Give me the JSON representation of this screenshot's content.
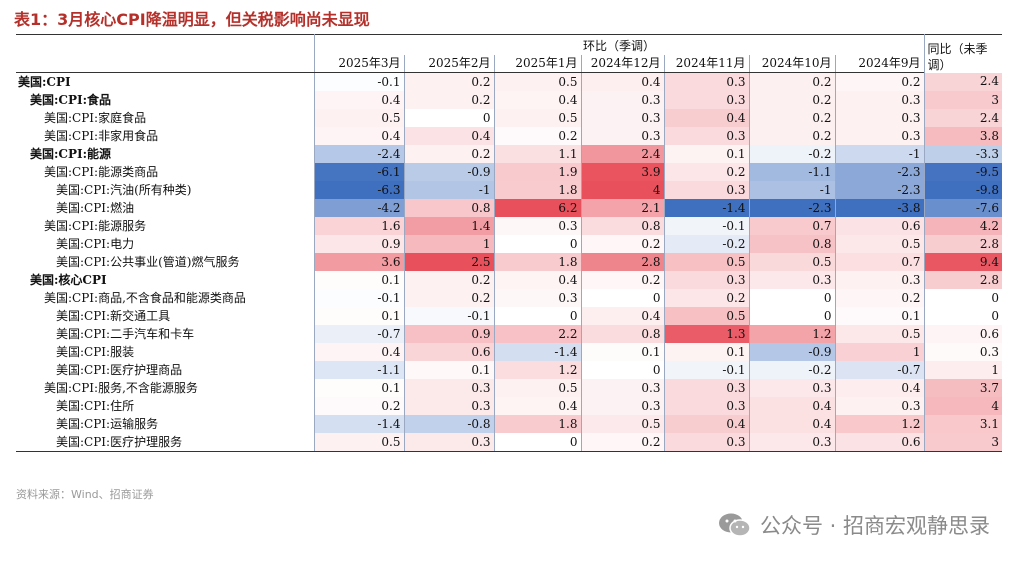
{
  "title": "表1：3月核心CPI降温明显，但关税影响尚未显现",
  "header": {
    "group_mom": "环比（季调）",
    "group_yoy": "同比（未季调）",
    "months": [
      "2025年3月",
      "2025年2月",
      "2025年1月",
      "2024年12月",
      "2024年11月",
      "2024年10月",
      "2024年9月"
    ]
  },
  "chart_data": {
    "type": "table",
    "columns": [
      "2025年3月",
      "2025年2月",
      "2025年1月",
      "2024年12月",
      "2024年11月",
      "2024年10月",
      "2024年9月",
      "同比（未季调）"
    ],
    "rows": [
      {
        "label": "美国:CPI",
        "indent": 0,
        "bold": true,
        "values": [
          -0.1,
          0.2,
          0.5,
          0.4,
          0.3,
          0.2,
          0.2,
          2.4
        ]
      },
      {
        "label": "美国:CPI:食品",
        "indent": 1,
        "bold": true,
        "values": [
          0.4,
          0.2,
          0.4,
          0.3,
          0.3,
          0.2,
          0.3,
          3
        ]
      },
      {
        "label": "美国:CPI:家庭食品",
        "indent": 2,
        "bold": false,
        "values": [
          0.5,
          0,
          0.5,
          0.3,
          0.4,
          0.2,
          0.3,
          2.4
        ]
      },
      {
        "label": "美国:CPI:非家用食品",
        "indent": 2,
        "bold": false,
        "values": [
          0.4,
          0.4,
          0.2,
          0.3,
          0.3,
          0.2,
          0.3,
          3.8
        ]
      },
      {
        "label": "美国:CPI:能源",
        "indent": 1,
        "bold": true,
        "values": [
          -2.4,
          0.2,
          1.1,
          2.4,
          0.1,
          -0.2,
          -1,
          -3.3
        ]
      },
      {
        "label": "美国:CPI:能源类商品",
        "indent": 2,
        "bold": false,
        "values": [
          -6.1,
          -0.9,
          1.9,
          3.9,
          0.2,
          -1.1,
          -2.3,
          -9.5
        ]
      },
      {
        "label": "美国:CPI:汽油(所有种类)",
        "indent": 3,
        "bold": false,
        "values": [
          -6.3,
          -1,
          1.8,
          4,
          0.3,
          -1,
          -2.3,
          -9.8
        ]
      },
      {
        "label": "美国:CPI:燃油",
        "indent": 3,
        "bold": false,
        "values": [
          -4.2,
          0.8,
          6.2,
          2.1,
          -1.4,
          -2.3,
          -3.8,
          -7.6
        ]
      },
      {
        "label": "美国:CPI:能源服务",
        "indent": 2,
        "bold": false,
        "values": [
          1.6,
          1.4,
          0.3,
          0.8,
          -0.1,
          0.7,
          0.6,
          4.2
        ]
      },
      {
        "label": "美国:CPI:电力",
        "indent": 3,
        "bold": false,
        "values": [
          0.9,
          1,
          0,
          0.2,
          -0.2,
          0.8,
          0.5,
          2.8
        ]
      },
      {
        "label": "美国:CPI:公共事业(管道)燃气服务",
        "indent": 3,
        "bold": false,
        "values": [
          3.6,
          2.5,
          1.8,
          2.8,
          0.5,
          0.5,
          0.7,
          9.4
        ]
      },
      {
        "label": "美国:核心CPI",
        "indent": 1,
        "bold": true,
        "values": [
          0.1,
          0.2,
          0.4,
          0.2,
          0.3,
          0.3,
          0.3,
          2.8
        ]
      },
      {
        "label": "美国:CPI:商品,不含食品和能源类商品",
        "indent": 2,
        "bold": false,
        "values": [
          -0.1,
          0.2,
          0.3,
          0,
          0.2,
          0,
          0.2,
          0
        ]
      },
      {
        "label": "美国:CPI:新交通工具",
        "indent": 3,
        "bold": false,
        "values": [
          0.1,
          -0.1,
          0,
          0.4,
          0.5,
          0,
          0.1,
          0
        ]
      },
      {
        "label": "美国:CPI:二手汽车和卡车",
        "indent": 3,
        "bold": false,
        "values": [
          -0.7,
          0.9,
          2.2,
          0.8,
          1.3,
          1.2,
          0.5,
          0.6
        ]
      },
      {
        "label": "美国:CPI:服装",
        "indent": 3,
        "bold": false,
        "values": [
          0.4,
          0.6,
          -1.4,
          0.1,
          0.1,
          -0.9,
          1,
          0.3
        ]
      },
      {
        "label": "美国:CPI:医疗护理商品",
        "indent": 3,
        "bold": false,
        "values": [
          -1.1,
          0.1,
          1.2,
          0,
          -0.1,
          -0.2,
          -0.7,
          1
        ]
      },
      {
        "label": "美国:CPI:服务,不含能源服务",
        "indent": 2,
        "bold": false,
        "values": [
          0.1,
          0.3,
          0.5,
          0.3,
          0.3,
          0.3,
          0.4,
          3.7
        ]
      },
      {
        "label": "美国:CPI:住所",
        "indent": 3,
        "bold": false,
        "values": [
          0.2,
          0.3,
          0.4,
          0.3,
          0.3,
          0.4,
          0.3,
          4
        ]
      },
      {
        "label": "美国:CPI:运输服务",
        "indent": 3,
        "bold": false,
        "values": [
          -1.4,
          -0.8,
          1.8,
          0.5,
          0.4,
          0.4,
          1.2,
          3.1
        ]
      },
      {
        "label": "美国:CPI:医疗护理服务",
        "indent": 3,
        "bold": false,
        "values": [
          0.5,
          0.3,
          0,
          0.2,
          0.3,
          0.3,
          0.6,
          3
        ]
      }
    ],
    "colors": {
      "positive": "#e8505b",
      "negative": "#3f6fbf",
      "neutral": "#ffffff"
    }
  },
  "source": "资料来源：Wind、招商证券",
  "watermark": "公众号 · 招商宏观静思录",
  "watermark_icon": "wechat-icon"
}
